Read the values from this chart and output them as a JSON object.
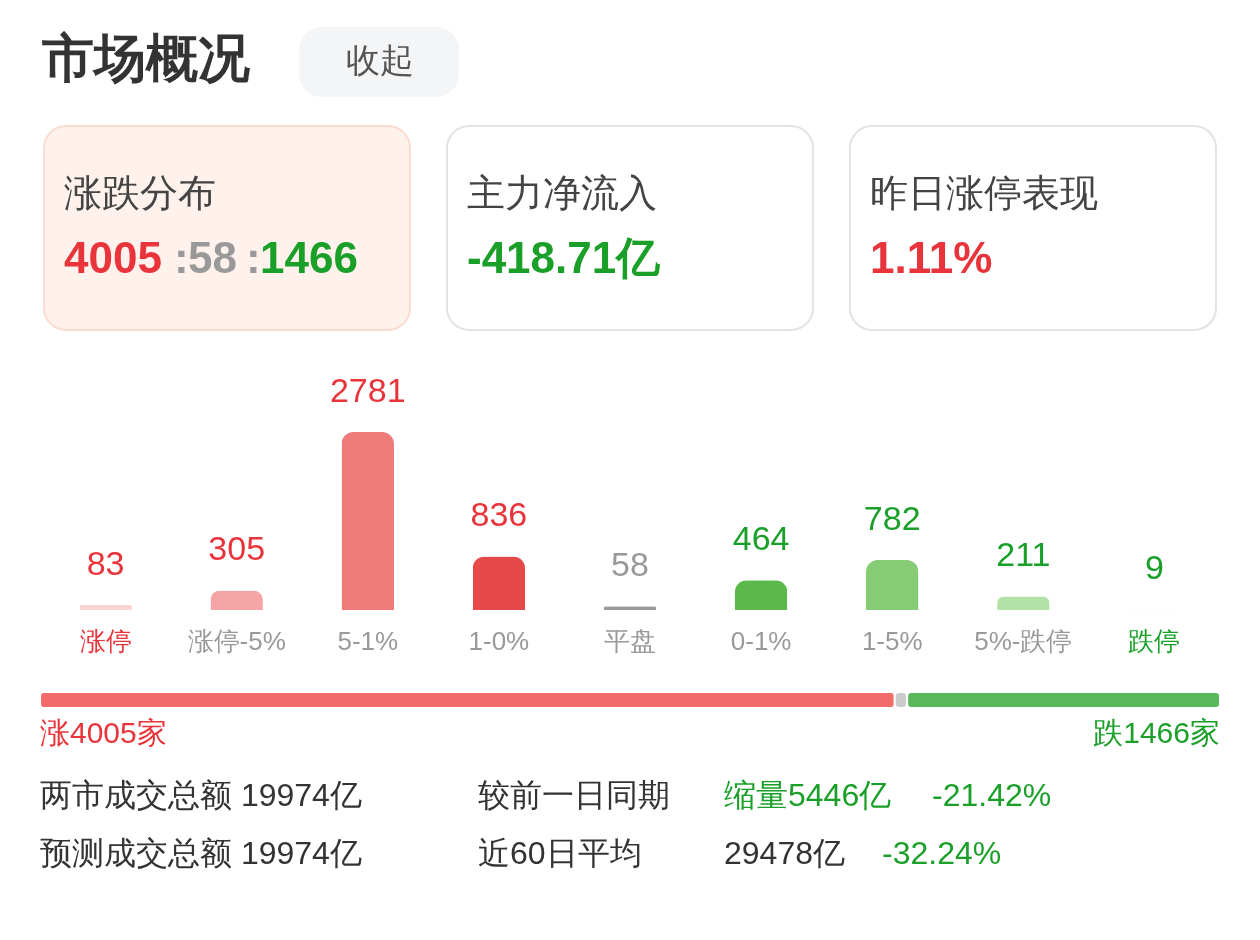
{
  "chart_data": [
    {
      "type": "other",
      "title": "市场概况",
      "annotations": [
        "收起",
        "涨跌分布",
        "4005",
        ":",
        "58",
        ":",
        "1466",
        "主力净流入",
        "-418.71亿",
        "昨日涨停表现",
        "1.11%"
      ]
    },
    {
      "type": "bar",
      "categories": [
        "涨停",
        "涨停-5%",
        "5-1%",
        "1-0%",
        "平盘",
        "0-1%",
        "1-5%",
        "5%-跌停",
        "跌停"
      ],
      "values": [
        83,
        305,
        2781,
        836,
        58,
        464,
        782,
        211,
        9
      ],
      "colors": [
        "#fad2d2",
        "#f5a5a5",
        "#ef7a7a",
        "#e64949",
        "#9b9b9b",
        "#5ab94a",
        "#85cc75",
        "#b3e2a8",
        "#d6f0d0"
      ],
      "data_labels": true
    },
    {
      "type": "bar",
      "orientation": "horizontal",
      "stacked": true,
      "categories": [
        null
      ],
      "series": [
        {
          "color": "#f26a6a",
          "values": [
            4005
          ],
          "value_labels": [
            "涨4005家"
          ]
        },
        {
          "color": "#cccccc",
          "values": [
            58
          ],
          "value_labels": [
            null
          ]
        },
        {
          "color": "#5cb85c",
          "values": [
            1466
          ],
          "value_labels": [
            "跌1466家"
          ]
        }
      ],
      "annotations": [
        "两市成交总额 19974亿",
        "较前一日同期",
        "缩量5446亿",
        "-21.42%",
        "预测成交总额 19974亿",
        "近60日平均",
        "29478亿",
        "-32.24%"
      ]
    }
  ]
}
